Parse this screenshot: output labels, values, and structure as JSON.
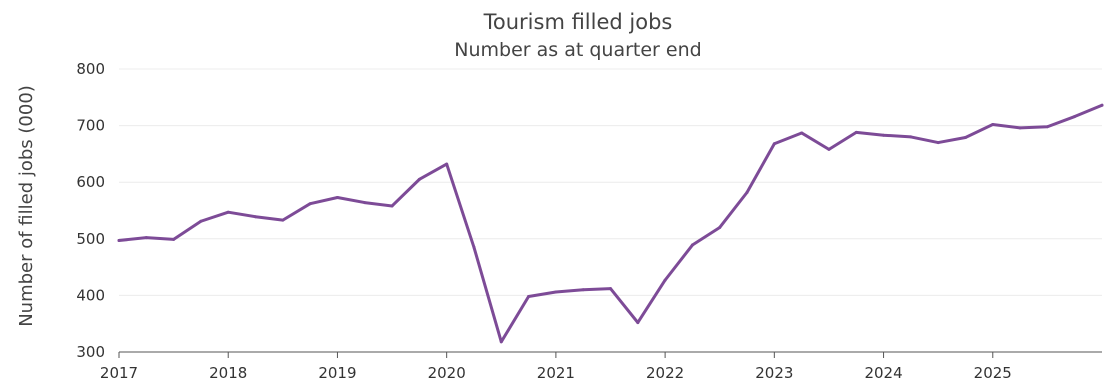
{
  "chart_data": {
    "type": "line",
    "title": "Tourism filled jobs",
    "subtitle": "Number as at quarter end",
    "ylabel": "Number of filled jobs (000)",
    "xlabel": "",
    "ylim": [
      300,
      800
    ],
    "y_ticks": [
      300,
      400,
      500,
      600,
      700,
      800
    ],
    "x_ticks": [
      "2017",
      "2018",
      "2019",
      "2020",
      "2021",
      "2022",
      "2023",
      "2024",
      "2025"
    ],
    "x_tick_values": [
      2017,
      2018,
      2019,
      2020,
      2021,
      2022,
      2023,
      2024,
      2025
    ],
    "xlim": [
      2017,
      2026
    ],
    "grid": true,
    "legend": "none",
    "color": "#7d4b97",
    "series": [
      {
        "x": [
          2017.0,
          2017.25,
          2017.5,
          2017.75,
          2018.0,
          2018.25,
          2018.5,
          2018.75,
          2019.0,
          2019.25,
          2019.5,
          2019.75,
          2020.0,
          2020.25,
          2020.5,
          2020.75,
          2021.0,
          2021.25,
          2021.5,
          2021.75,
          2022.0,
          2022.25,
          2022.5,
          2022.75,
          2023.0,
          2023.25,
          2023.5,
          2023.75,
          2024.0,
          2024.25,
          2024.5,
          2024.75,
          2025.0,
          2025.25,
          2025.5,
          2025.75,
          2026.0
        ],
        "values": [
          497,
          502,
          499,
          531,
          547,
          539,
          533,
          562,
          573,
          564,
          558,
          605,
          632,
          485,
          318,
          398,
          406,
          410,
          412,
          352,
          427,
          489,
          520,
          582,
          668,
          687,
          658,
          688,
          683,
          680,
          670,
          679,
          702,
          696,
          698,
          716,
          736
        ]
      }
    ]
  }
}
